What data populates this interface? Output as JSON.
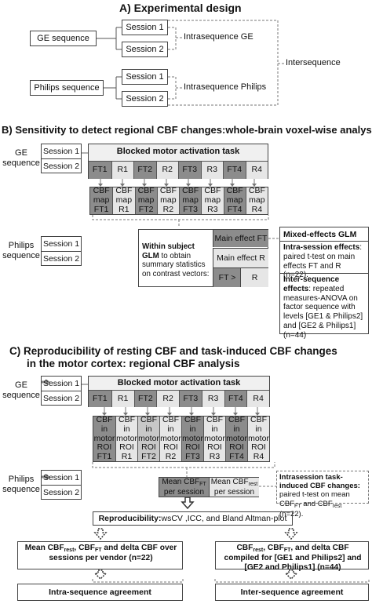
{
  "sectionA": {
    "title": "A) Experimental design",
    "ge": "GE sequence",
    "philips": "Philips sequence",
    "session1": "Session 1",
    "session2": "Session 2",
    "intra_ge": "Intrasequence GE",
    "intra_philips": "Intrasequence Philips",
    "inter": "Intersequence"
  },
  "sectionB": {
    "title": "B) Sensitivity to detect regional CBF changes:whole-brain voxel-wise analysis",
    "ge_line1": "GE",
    "ge_line2": "sequence",
    "philips_line1": "Philips",
    "philips_line2": "sequence",
    "session1": "Session 1",
    "session2": "Session 2",
    "task_title": "Blocked motor activation task",
    "blocks": [
      "FT1",
      "R1",
      "FT2",
      "R2",
      "FT3",
      "R3",
      "FT4",
      "R4"
    ],
    "map_line1": "CBF",
    "map_line2": "map",
    "glm_bold": "Within subject GLM",
    "glm_rest": "to obtain summary statistics on contrast vectors:",
    "effect_ft": "Main effect FT",
    "effect_r": "Main effect R",
    "contrast_ft": "FT >",
    "contrast_r": "R",
    "mixed_title": "Mixed-effects GLM",
    "intra_bold": "Intra-session effects",
    "intra_text": ": paired t-test on main effects FT and R (n=22).",
    "inter_bold": "Inter-sequence effects",
    "inter_text": ": repeated measures-ANOVA on factor sequence with levels [GE1 & Philips2] and [GE2 & Philips1] (n=44)"
  },
  "sectionC": {
    "title_line1": "C) Reproducibility of resting CBF and task-induced CBF changes",
    "title_line2": "in the motor cortex: regional CBF analysis",
    "ge_line1": "GE",
    "ge_line2": "sequence",
    "philips_line1": "Philips",
    "philips_line2": "sequence",
    "session1": "Session 1",
    "session2": "Session 2",
    "task_title": "Blocked motor activation task",
    "blocks": [
      "FT1",
      "R1",
      "FT2",
      "R2",
      "FT3",
      "R3",
      "FT4",
      "R4"
    ],
    "roi_line1": "CBF in",
    "roi_line2": "motor",
    "roi_line3": "ROI",
    "mean_ft_main": "Mean CBF",
    "mean_ft_sub": "FT",
    "mean_rest_main": "Mean CBF",
    "mean_rest_sub": "rest",
    "per_session": "per session",
    "intra_task_title": "Intrasession task-induced CBF changes:",
    "intra_task_text1": "paired t-test on mean CBF",
    "intra_task_sub1": "FT",
    "intra_task_text2": " and CBF",
    "intra_task_sub2": "rest",
    "intra_task_text3": " (n=22).",
    "repro_bold": "Reproducibility:",
    "repro_text": " wsCV ,ICC, and Bland Altman-plot",
    "left_out_1": "Mean CBF",
    "left_out_sub1": "rest",
    "left_out_2": ", CBF",
    "left_out_sub2": "FT",
    "left_out_3": " and delta CBF over sessions per vendor (n=22)",
    "right_out_1": "CBF",
    "right_out_sub1": "rest",
    "right_out_2": ", CBF",
    "right_out_sub2": "FT",
    "right_out_3": ", and delta CBF compiled for [GE1 and Philips2] and [GE2 and Philips1] (n=44)",
    "intra_agree": "Intra-sequence agreement",
    "inter_agree": "Inter-sequence agreement"
  }
}
